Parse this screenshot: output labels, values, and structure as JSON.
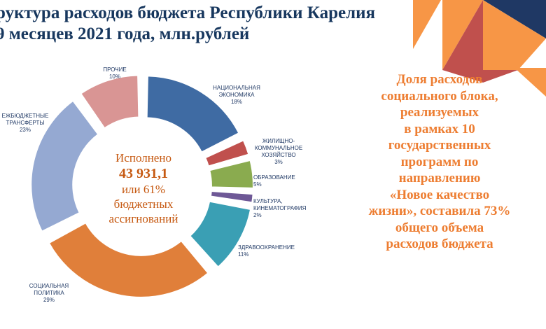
{
  "title": {
    "line1": "руктура расходов бюджета Республики Карелия",
    "line2": "9 месяцев 2021 года, млн.рублей"
  },
  "center": {
    "line1": "Исполнено",
    "value": "43 931,1",
    "line3": "или 61%",
    "line4": "бюджетных",
    "line5": "ассигнований"
  },
  "side_text": "Доля расходов\nсоциального блока,\nреализуемых\nв рамках 10\nгосударственных\nпрограмм по\nнаправлению\n«Новое качество\nжизни», составила 73%\nобщего объема\nрасходов бюджета",
  "colors": {
    "title": "#17375e",
    "accent_orange": "#ed7d31",
    "center_text": "#c65911",
    "deco_orange": "#f79646",
    "deco_red": "#c0504d",
    "deco_navy": "#1f3864"
  },
  "chart_data": {
    "type": "pie",
    "variant": "exploded-donut",
    "title": "",
    "slices": [
      {
        "label_lines": [
          "НАЦИОНАЛЬНАЯ",
          "ЭКОНОМИКА"
        ],
        "percent_label": "18%",
        "value": 18,
        "color": "#3f6ba3"
      },
      {
        "label_lines": [
          "ЖИЛИЩНО-",
          "КОММУНАЛЬНОЕ",
          "ХОЗЯЙСТВО"
        ],
        "percent_label": "3%",
        "value": 3,
        "color": "#c0504d"
      },
      {
        "label_lines": [
          "ОБРАЗОВАНИЕ"
        ],
        "percent_label": "5%",
        "value": 5,
        "color": "#8aab4f"
      },
      {
        "label_lines": [
          "КУЛЬТУРА,",
          "КИНЕМАТОГРАФИЯ"
        ],
        "percent_label": "2%",
        "value": 2,
        "color": "#6e5896"
      },
      {
        "label_lines": [
          "ЗДРАВООХРАНЕНИЕ"
        ],
        "percent_label": "11%",
        "value": 11,
        "color": "#3a9fb4"
      },
      {
        "label_lines": [
          "СОЦИАЛЬНАЯ",
          "ПОЛИТИКА"
        ],
        "percent_label": "29%",
        "value": 29,
        "color": "#e07f3a"
      },
      {
        "label_lines": [
          "ЕЖБЮДЖЕТНЫЕ",
          "ТРАНСФЕРТЫ"
        ],
        "percent_label": "23%",
        "value": 23,
        "color": "#95a9d2"
      },
      {
        "label_lines": [
          "ПРОЧИЕ"
        ],
        "percent_label": "10%",
        "value": 10,
        "color": "#d99594"
      }
    ]
  }
}
